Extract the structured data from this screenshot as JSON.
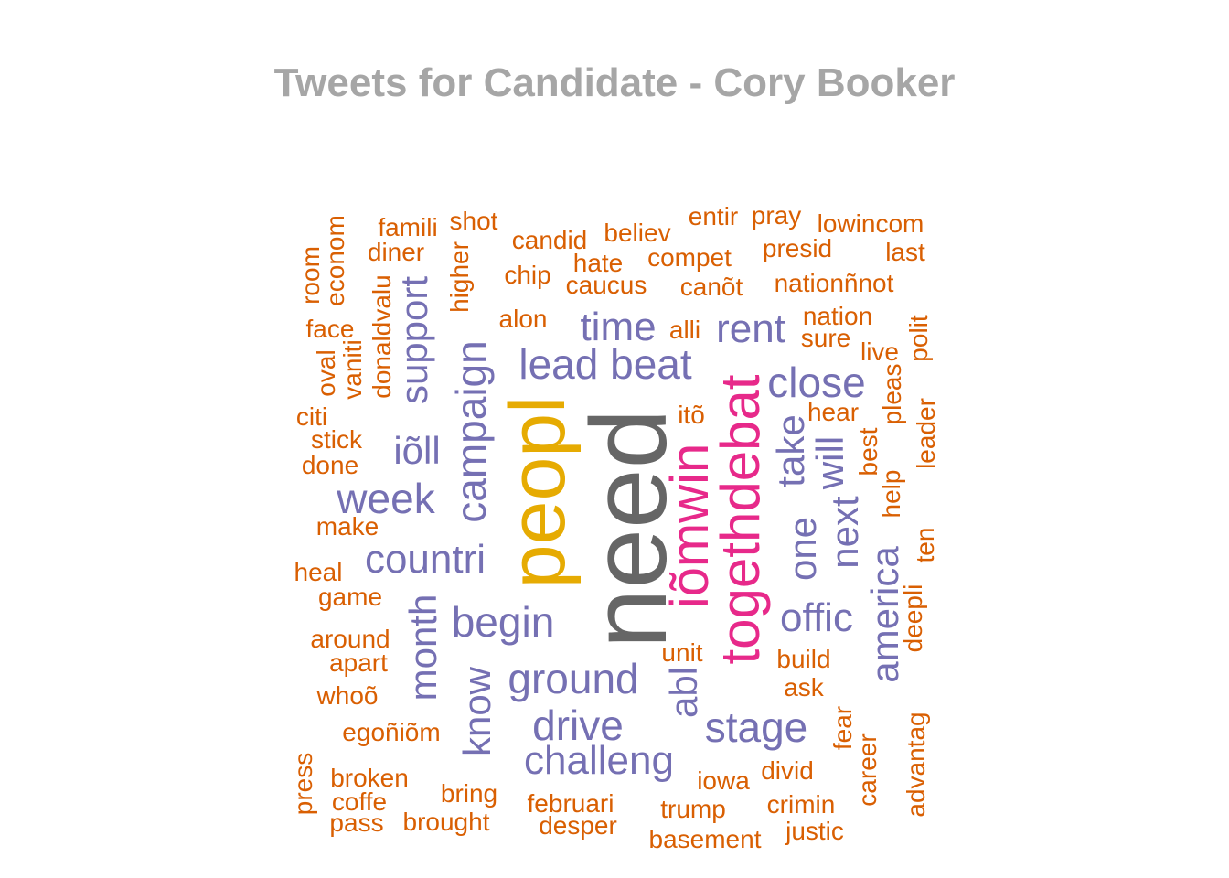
{
  "title": "Tweets for Candidate - Cory Booker",
  "colors": {
    "orange": "#d95f02",
    "purple": "#7570b3",
    "pink": "#e7298a",
    "gold": "#e6ab02",
    "gray": "#666666",
    "title": "#a6a6a6"
  },
  "words": [
    {
      "text": "need",
      "color": "gray",
      "rot": true
    },
    {
      "text": "peopl",
      "color": "gold",
      "rot": true
    },
    {
      "text": "togethdebat",
      "color": "pink",
      "rot": true
    },
    {
      "text": "iõmwin",
      "color": "pink",
      "rot": true
    },
    {
      "text": "lead beat",
      "color": "purple",
      "rot": false
    },
    {
      "text": "campaign",
      "color": "purple",
      "rot": true
    },
    {
      "text": "countri",
      "color": "purple",
      "rot": false
    },
    {
      "text": "challeng",
      "color": "purple",
      "rot": false
    },
    {
      "text": "ground",
      "color": "purple",
      "rot": false
    },
    {
      "text": "begin",
      "color": "purple",
      "rot": false
    },
    {
      "text": "drive",
      "color": "purple",
      "rot": false
    },
    {
      "text": "stage",
      "color": "purple",
      "rot": false
    },
    {
      "text": "week",
      "color": "purple",
      "rot": false
    },
    {
      "text": "close",
      "color": "purple",
      "rot": false
    },
    {
      "text": "rent",
      "color": "purple",
      "rot": false
    },
    {
      "text": "time",
      "color": "purple",
      "rot": false
    },
    {
      "text": "offic",
      "color": "purple",
      "rot": false
    },
    {
      "text": "america",
      "color": "purple",
      "rot": true
    },
    {
      "text": "month",
      "color": "purple",
      "rot": true
    },
    {
      "text": "know",
      "color": "purple",
      "rot": true
    },
    {
      "text": "support",
      "color": "purple",
      "rot": true
    },
    {
      "text": "iõll",
      "color": "purple",
      "rot": false
    },
    {
      "text": "one",
      "color": "purple",
      "rot": true
    },
    {
      "text": "take",
      "color": "purple",
      "rot": true
    },
    {
      "text": "next",
      "color": "purple",
      "rot": true
    },
    {
      "text": "will",
      "color": "purple",
      "rot": true
    },
    {
      "text": "abl",
      "color": "purple",
      "rot": true
    },
    {
      "text": "famili",
      "color": "orange",
      "rot": false
    },
    {
      "text": "shot",
      "color": "orange",
      "rot": false
    },
    {
      "text": "candid",
      "color": "orange",
      "rot": false
    },
    {
      "text": "believ",
      "color": "orange",
      "rot": false
    },
    {
      "text": "entir",
      "color": "orange",
      "rot": false
    },
    {
      "text": "pray",
      "color": "orange",
      "rot": false
    },
    {
      "text": "lowincom",
      "color": "orange",
      "rot": false
    },
    {
      "text": "diner",
      "color": "orange",
      "rot": false
    },
    {
      "text": "hate",
      "color": "orange",
      "rot": false
    },
    {
      "text": "compet",
      "color": "orange",
      "rot": false
    },
    {
      "text": "presid",
      "color": "orange",
      "rot": false
    },
    {
      "text": "last",
      "color": "orange",
      "rot": false
    },
    {
      "text": "chip",
      "color": "orange",
      "rot": false
    },
    {
      "text": "caucus",
      "color": "orange",
      "rot": false
    },
    {
      "text": "canõt",
      "color": "orange",
      "rot": false
    },
    {
      "text": "nationñnot",
      "color": "orange",
      "rot": false
    },
    {
      "text": "alon",
      "color": "orange",
      "rot": false
    },
    {
      "text": "alli",
      "color": "orange",
      "rot": false
    },
    {
      "text": "nation",
      "color": "orange",
      "rot": false
    },
    {
      "text": "sure",
      "color": "orange",
      "rot": false
    },
    {
      "text": "live",
      "color": "orange",
      "rot": false
    },
    {
      "text": "face",
      "color": "orange",
      "rot": false
    },
    {
      "text": "citi",
      "color": "orange",
      "rot": false
    },
    {
      "text": "stick",
      "color": "orange",
      "rot": false
    },
    {
      "text": "done",
      "color": "orange",
      "rot": false
    },
    {
      "text": "itõ",
      "color": "orange",
      "rot": false
    },
    {
      "text": "hear",
      "color": "orange",
      "rot": false
    },
    {
      "text": "make",
      "color": "orange",
      "rot": false
    },
    {
      "text": "heal",
      "color": "orange",
      "rot": false
    },
    {
      "text": "game",
      "color": "orange",
      "rot": false
    },
    {
      "text": "around",
      "color": "orange",
      "rot": false
    },
    {
      "text": "apart",
      "color": "orange",
      "rot": false
    },
    {
      "text": "whoõ",
      "color": "orange",
      "rot": false
    },
    {
      "text": "unit",
      "color": "orange",
      "rot": false
    },
    {
      "text": "build",
      "color": "orange",
      "rot": false
    },
    {
      "text": "ask",
      "color": "orange",
      "rot": false
    },
    {
      "text": "egoñiõm",
      "color": "orange",
      "rot": false
    },
    {
      "text": "broken",
      "color": "orange",
      "rot": false
    },
    {
      "text": "coffe",
      "color": "orange",
      "rot": false
    },
    {
      "text": "pass",
      "color": "orange",
      "rot": false
    },
    {
      "text": "bring",
      "color": "orange",
      "rot": false
    },
    {
      "text": "brought",
      "color": "orange",
      "rot": false
    },
    {
      "text": "februari",
      "color": "orange",
      "rot": false
    },
    {
      "text": "desper",
      "color": "orange",
      "rot": false
    },
    {
      "text": "iowa",
      "color": "orange",
      "rot": false
    },
    {
      "text": "divid",
      "color": "orange",
      "rot": false
    },
    {
      "text": "trump",
      "color": "orange",
      "rot": false
    },
    {
      "text": "crimin",
      "color": "orange",
      "rot": false
    },
    {
      "text": "basement",
      "color": "orange",
      "rot": false
    },
    {
      "text": "justic",
      "color": "orange",
      "rot": false
    },
    {
      "text": "room",
      "color": "orange",
      "rot": true
    },
    {
      "text": "econom",
      "color": "orange",
      "rot": true
    },
    {
      "text": "oval",
      "color": "orange",
      "rot": true
    },
    {
      "text": "vaniti",
      "color": "orange",
      "rot": true
    },
    {
      "text": "donaldvalu",
      "color": "orange",
      "rot": true
    },
    {
      "text": "higher",
      "color": "orange",
      "rot": true
    },
    {
      "text": "polit",
      "color": "orange",
      "rot": true
    },
    {
      "text": "pleas",
      "color": "orange",
      "rot": true
    },
    {
      "text": "leader",
      "color": "orange",
      "rot": true
    },
    {
      "text": "best",
      "color": "orange",
      "rot": true
    },
    {
      "text": "help",
      "color": "orange",
      "rot": true
    },
    {
      "text": "ten",
      "color": "orange",
      "rot": true
    },
    {
      "text": "deepli",
      "color": "orange",
      "rot": true
    },
    {
      "text": "fear",
      "color": "orange",
      "rot": true
    },
    {
      "text": "career",
      "color": "orange",
      "rot": true
    },
    {
      "text": "advantag",
      "color": "orange",
      "rot": true
    },
    {
      "text": "press",
      "color": "orange",
      "rot": true
    }
  ]
}
